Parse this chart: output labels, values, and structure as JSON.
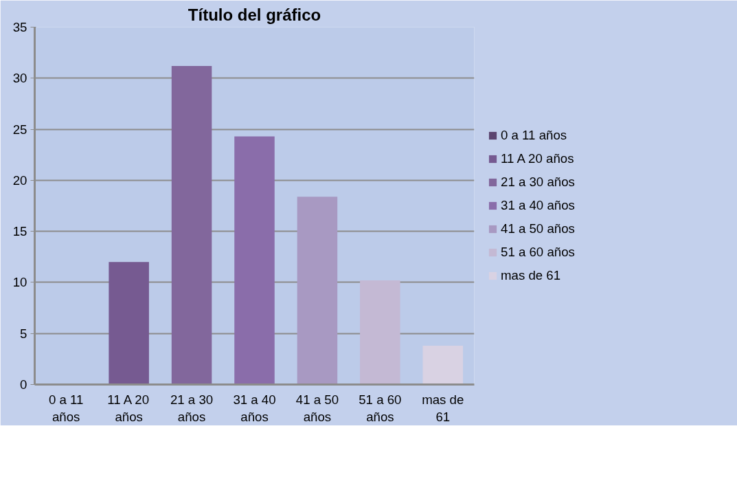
{
  "chart_data": {
    "type": "bar",
    "title": "Título del gráfico",
    "categories": [
      "0 a 11 años",
      "11 A 20 años",
      "21 a 30 años",
      "31 a 40 años",
      "41 a 50 años",
      "51 a 60 años",
      "mas de 61"
    ],
    "series": [
      {
        "name": "0 a 11 años",
        "color": "#5c4570",
        "values": [
          0,
          null,
          null,
          null,
          null,
          null,
          null
        ]
      },
      {
        "name": "11 A 20 años",
        "color": "#765a91",
        "values": [
          null,
          12,
          null,
          null,
          null,
          null,
          null
        ]
      },
      {
        "name": "21 a 30 años",
        "color": "#82679c",
        "values": [
          null,
          null,
          31.2,
          null,
          null,
          null,
          null
        ]
      },
      {
        "name": "31 a 40 años",
        "color": "#8a6daa",
        "values": [
          null,
          null,
          null,
          24.3,
          null,
          null,
          null
        ]
      },
      {
        "name": "41 a 50 años",
        "color": "#a899c2",
        "values": [
          null,
          null,
          null,
          null,
          18.4,
          null,
          null
        ]
      },
      {
        "name": "51 a 60 años",
        "color": "#c4b9d4",
        "values": [
          null,
          null,
          null,
          null,
          null,
          10.2,
          null
        ]
      },
      {
        "name": "mas de 61",
        "color": "#d9d2e3",
        "values": [
          null,
          null,
          null,
          null,
          null,
          null,
          3.8
        ]
      }
    ],
    "ylim": [
      0,
      35
    ],
    "yticks": [
      0,
      5,
      10,
      15,
      20,
      25,
      30,
      35
    ],
    "grid": "y",
    "legend": "right"
  }
}
